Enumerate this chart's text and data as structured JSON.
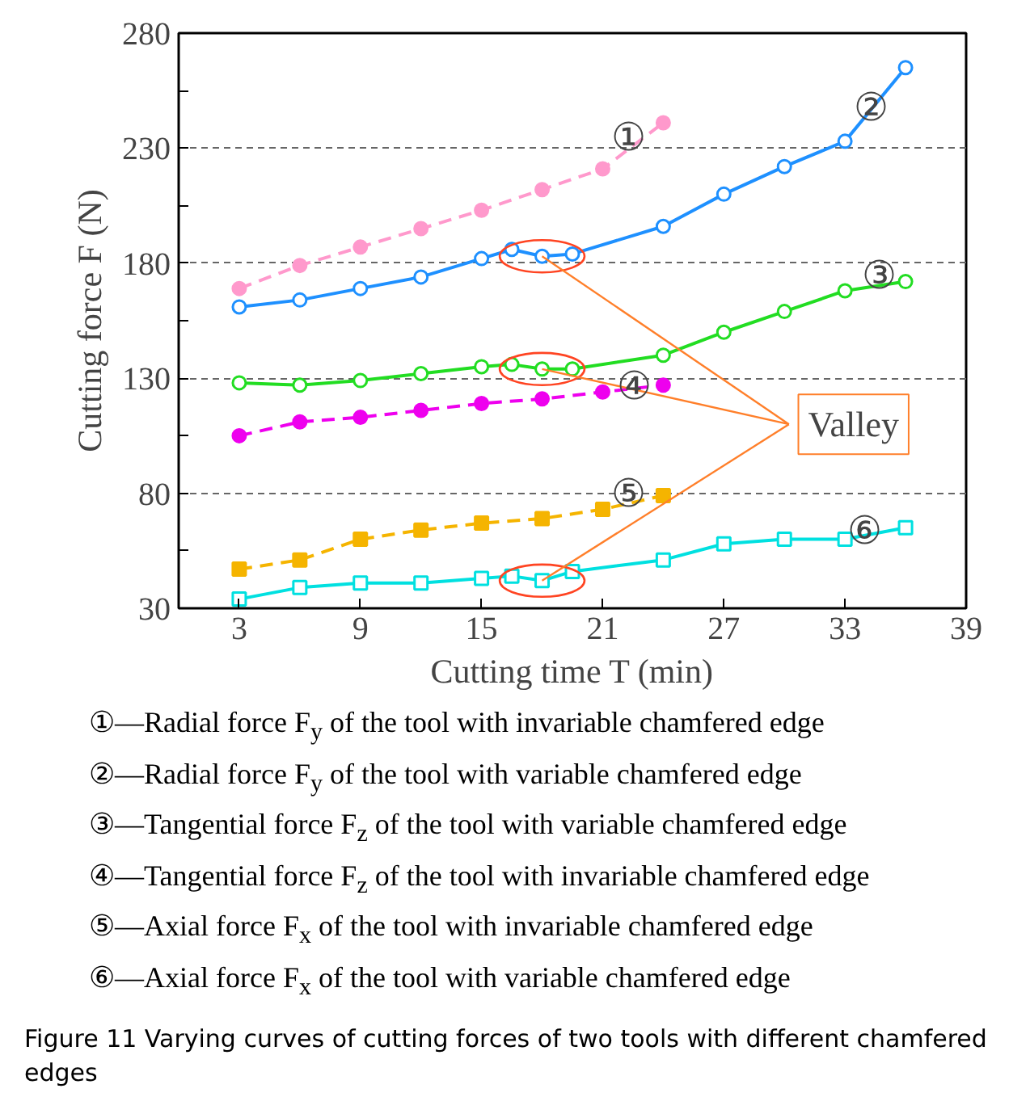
{
  "chart_data": {
    "type": "line",
    "xlabel": "Cutting time T (min)",
    "ylabel": "Cutting force F (N)",
    "xlim": [
      0,
      39
    ],
    "xticks": [
      3,
      9,
      15,
      21,
      27,
      33,
      39
    ],
    "ylim": [
      30,
      280
    ],
    "yticks": [
      30,
      {
        "value": 55,
        "label": null
      },
      80,
      {
        "value": 105,
        "label": null
      },
      130,
      {
        "value": 155,
        "label": null
      },
      180,
      {
        "value": 205,
        "label": null
      },
      230,
      {
        "value": 255,
        "label": null
      },
      280
    ],
    "grid": "y",
    "series": [
      {
        "color": "#ff99cc",
        "marker": "circle",
        "line_style": "dashed",
        "x": [
          3,
          6,
          9,
          12,
          15,
          18,
          21,
          24
        ],
        "values": [
          169,
          179,
          187,
          195,
          203,
          212,
          221,
          241
        ]
      },
      {
        "color": "#1e90ff",
        "marker": "circle",
        "line_style": "solid",
        "x": [
          3,
          6,
          9,
          12,
          15,
          16.5,
          18,
          19.5,
          24,
          27,
          30,
          33,
          36
        ],
        "values": [
          161,
          164,
          169,
          174,
          182,
          186,
          183,
          184,
          196,
          210,
          222,
          233,
          265
        ]
      },
      {
        "color": "#22dd22",
        "marker": "circle",
        "line_style": "solid",
        "x": [
          3,
          6,
          9,
          12,
          15,
          16.5,
          18,
          19.5,
          24,
          27,
          30,
          33,
          36
        ],
        "values": [
          128,
          127,
          129,
          132,
          135,
          136,
          134,
          134,
          140,
          150,
          159,
          168,
          172
        ]
      },
      {
        "color": "#ee00ee",
        "marker": "circle",
        "line_style": "dashed",
        "x": [
          3,
          6,
          9,
          12,
          15,
          18,
          21,
          24
        ],
        "values": [
          105,
          111,
          113,
          116,
          119,
          121,
          124,
          127
        ]
      },
      {
        "color": "#f5b400",
        "marker": "square",
        "line_style": "dashed",
        "x": [
          3,
          6,
          9,
          12,
          15,
          18,
          21,
          24
        ],
        "values": [
          47,
          51,
          60,
          64,
          67,
          69,
          73,
          79
        ]
      },
      {
        "color": "#00e0e0",
        "marker": "square",
        "line_style": "solid",
        "x": [
          3,
          6,
          9,
          12,
          15,
          16.5,
          18,
          19.5,
          24,
          27,
          30,
          33,
          36
        ],
        "values": [
          34,
          39,
          41,
          41,
          43,
          44,
          42,
          46,
          51,
          58,
          60,
          60,
          65
        ]
      }
    ],
    "annotations": [
      {
        "text": "①",
        "x": 22.3,
        "y": 234
      },
      {
        "text": "②",
        "x": 34.3,
        "y": 247
      },
      {
        "text": "③",
        "x": 34.7,
        "y": 174
      },
      {
        "text": "④",
        "x": 22.6,
        "y": 126
      },
      {
        "text": "⑤",
        "x": 22.3,
        "y": 79
      },
      {
        "text": "⑥",
        "x": 34,
        "y": 63
      },
      {
        "text": "Valley",
        "x": 18,
        "y": 134
      },
      "①—Radial force F$_{y}$ of the tool with invariable chamfered edge",
      "②—Radial force F$_{y}$ of the tool with variable chamfered edge",
      "③—Tangential force F$_{z}$ of the tool with variable chamfered edge",
      "④—Tangential force F$_{z}$ of the tool with invariable chamfered edge",
      "⑤—Axial force F$_{x}$ of the tool with invariable chamfered edge",
      "⑥—Axial force F$_{x}$ of the tool with variable chamfered edge",
      "Figure 11 Varying curves of cutting forces of two tools with different chamfered edges"
    ]
  }
}
